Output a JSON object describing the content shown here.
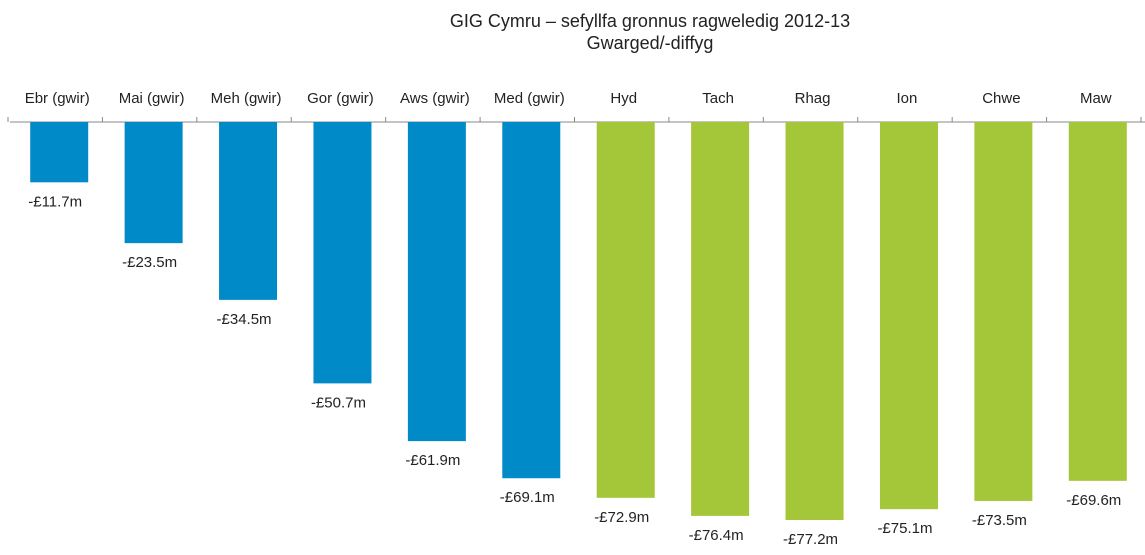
{
  "chart_data": {
    "type": "bar",
    "title": "GIG Cymru – sefyllfa gronnus ragweledig 2012-13",
    "subtitle": "Gwarged/-diffyg",
    "categories": [
      "Ebr (gwir)",
      "Mai (gwir)",
      "Meh (gwir)",
      "Gor (gwir)",
      "Aws (gwir)",
      "Med (gwir)",
      "Hyd",
      "Tach",
      "Rhag",
      "Ion",
      "Chwe",
      "Maw"
    ],
    "values": [
      -11.7,
      -23.5,
      -34.5,
      -50.7,
      -61.9,
      -69.1,
      -72.9,
      -76.4,
      -77.2,
      -75.1,
      -73.5,
      -69.6
    ],
    "value_labels": [
      "-£11.7m",
      "-£23.5m",
      "-£34.5m",
      "-£50.7m",
      "-£61.9m",
      "-£69.1m",
      "-£72.9m",
      "-£76.4m",
      "-£77.2m",
      "-£75.1m",
      "-£73.5m",
      "-£69.6m"
    ],
    "colors": [
      "#008bc8",
      "#008bc8",
      "#008bc8",
      "#008bc8",
      "#008bc8",
      "#008bc8",
      "#a4c639",
      "#a4c639",
      "#a4c639",
      "#a4c639",
      "#a4c639",
      "#a4c639"
    ]
  }
}
